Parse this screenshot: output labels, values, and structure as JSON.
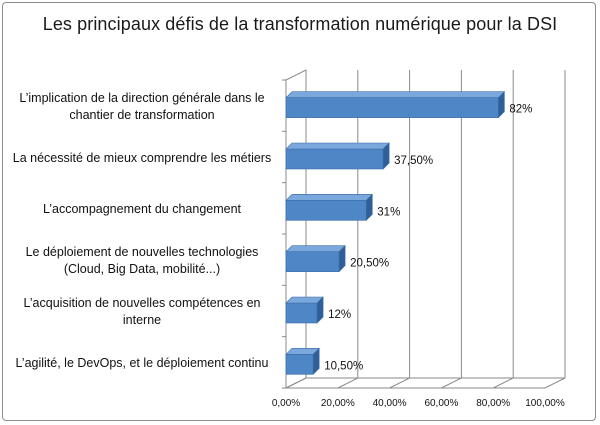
{
  "chart_data": {
    "type": "bar",
    "orientation": "horizontal",
    "title": "Les principaux défis de la transformation numérique pour la DSI",
    "categories": [
      "L’implication de la direction générale dans le chantier de transformation",
      "La nécessité de mieux comprendre les métiers",
      "L’accompagnement du changement",
      "Le déploiement de nouvelles technologies (Cloud, Big Data, mobilité...)",
      "L’acquisition de nouvelles compétences en interne",
      "L’agilité, le DevOps, et le déploiement continu"
    ],
    "values": [
      82,
      37.5,
      31,
      20.5,
      12,
      10.5
    ],
    "data_labels": [
      "82%",
      "37,50%",
      "31%",
      "20,50%",
      "12%",
      "10,50%"
    ],
    "xlim": [
      0,
      100
    ],
    "x_ticks": [
      "0,00%",
      "20,00%",
      "40,00%",
      "60,00%",
      "80,00%",
      "100,00%"
    ],
    "grid": true,
    "three_d": true,
    "bar_color": "#4f86c6",
    "bar_top_color": "#7aa7dc",
    "bar_side_color": "#2f5f97"
  }
}
